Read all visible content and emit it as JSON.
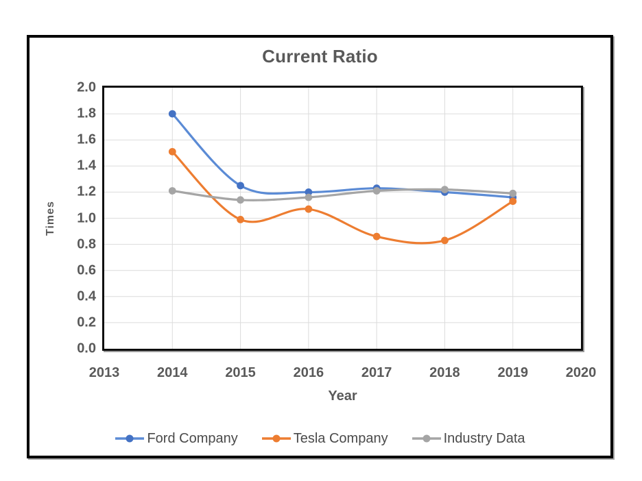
{
  "chart_data": {
    "type": "line",
    "title": "Current Ratio",
    "xlabel": "Year",
    "ylabel": "Times",
    "xlim": [
      2013,
      2020
    ],
    "ylim": [
      0.0,
      2.0
    ],
    "x_ticks": [
      2013,
      2014,
      2015,
      2016,
      2017,
      2018,
      2019,
      2020
    ],
    "y_ticks": [
      0.0,
      0.2,
      0.4,
      0.6,
      0.8,
      1.0,
      1.2,
      1.4,
      1.6,
      1.8,
      2.0
    ],
    "y_tick_decimals": 1,
    "grid": true,
    "smooth_lines": true,
    "legend_position": "bottom",
    "x": [
      2014,
      2015,
      2016,
      2017,
      2018,
      2019
    ],
    "series": [
      {
        "name": "Ford Company",
        "line_color": "#5B8BD5",
        "marker_color": "#4472C4",
        "values": [
          1.8,
          1.25,
          1.2,
          1.23,
          1.2,
          1.16
        ]
      },
      {
        "name": "Tesla Company",
        "line_color": "#ED7D31",
        "marker_color": "#ED7D31",
        "values": [
          1.51,
          0.99,
          1.07,
          0.86,
          0.83,
          1.13
        ]
      },
      {
        "name": "Industry Data",
        "line_color": "#A5A5A5",
        "marker_color": "#A5A5A5",
        "values": [
          1.21,
          1.14,
          1.16,
          1.21,
          1.22,
          1.19
        ]
      }
    ],
    "colors": {
      "grid": "#DCDCDC",
      "axis_text": "#595959",
      "plot_border": "#000000",
      "frame_border": "#000000"
    }
  }
}
